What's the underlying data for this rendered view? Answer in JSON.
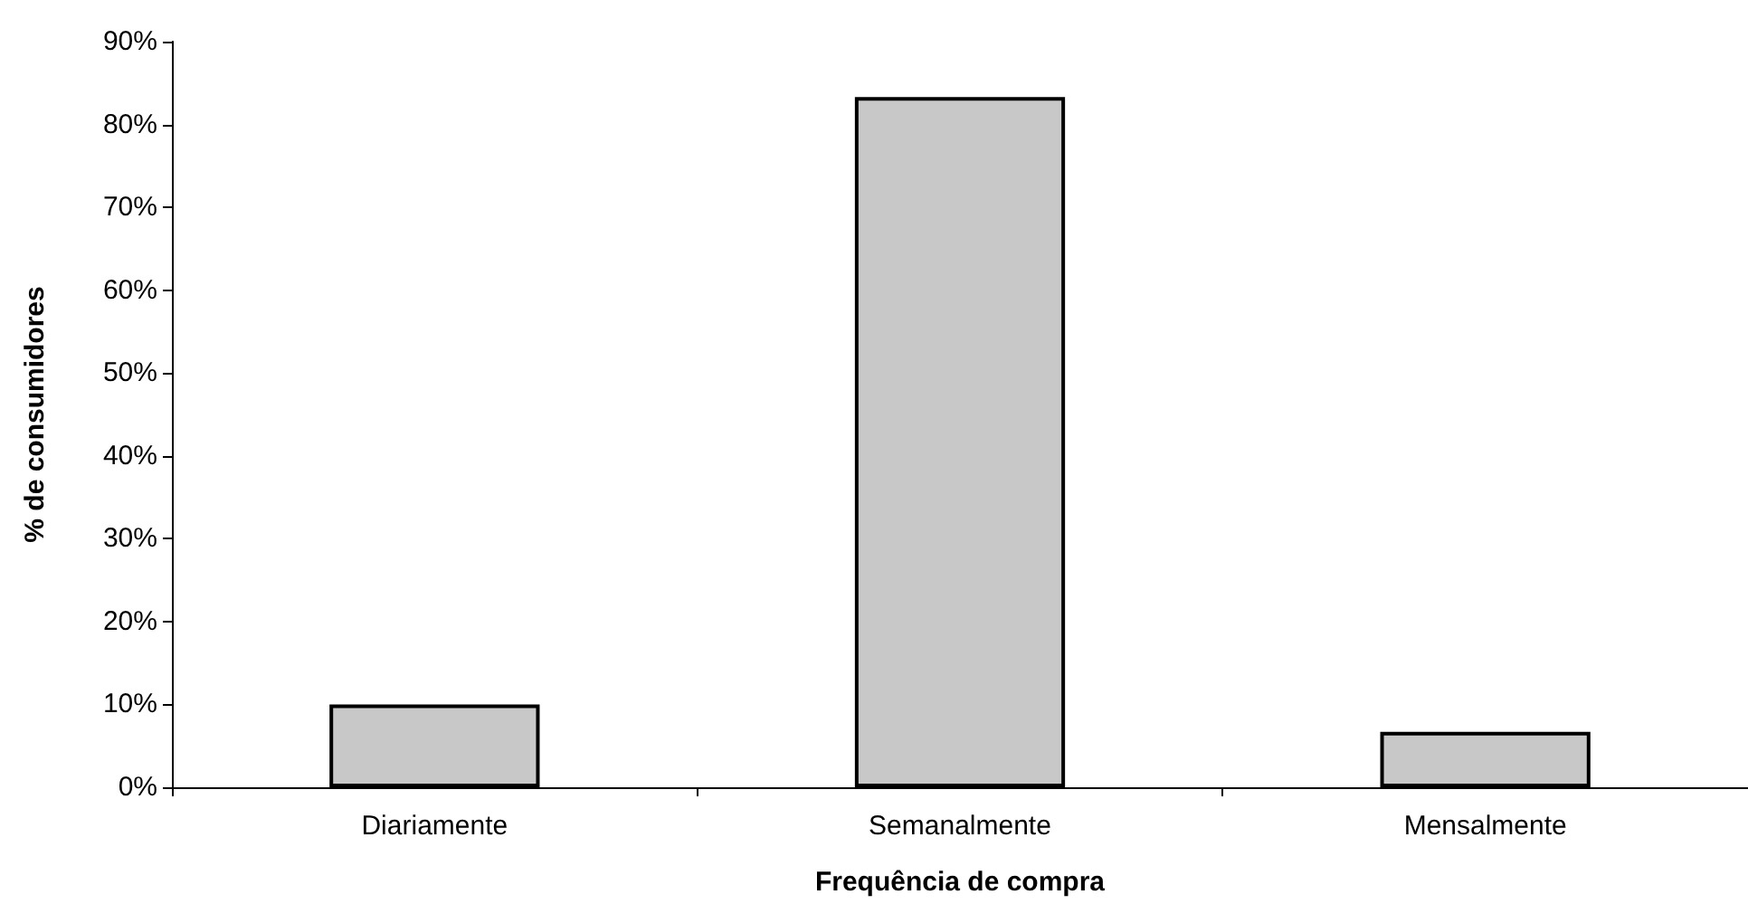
{
  "chart_data": {
    "type": "bar",
    "xlabel": "Frequência de compra",
    "ylabel": "% de consumidores",
    "categories": [
      "Diariamente",
      "Semanalmente",
      "Mensalmente"
    ],
    "values": [
      10,
      83.3,
      6.7
    ],
    "color": "#c8c8c8",
    "ylim": [
      0,
      90
    ],
    "yticks": [
      {
        "value": 0,
        "label": "0%"
      },
      {
        "value": 10,
        "label": "10%"
      },
      {
        "value": 20,
        "label": "20%"
      },
      {
        "value": 30,
        "label": "30%"
      },
      {
        "value": 40,
        "label": "40%"
      },
      {
        "value": 50,
        "label": "50%"
      },
      {
        "value": 60,
        "label": "60%"
      },
      {
        "value": 70,
        "label": "70%"
      },
      {
        "value": 80,
        "label": "80%"
      },
      {
        "value": 90,
        "label": "90%"
      }
    ],
    "grid": false,
    "legend": false
  }
}
